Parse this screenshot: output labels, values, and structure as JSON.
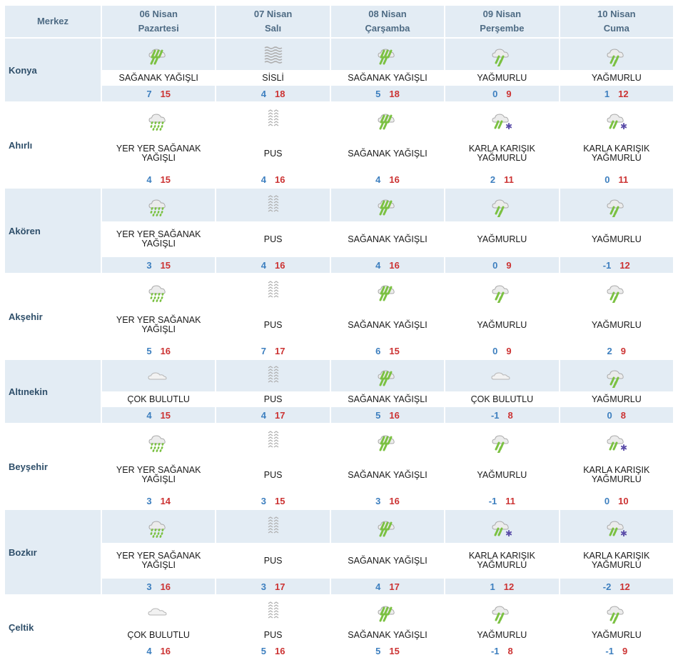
{
  "header": {
    "center_label": "Merkez",
    "days": [
      {
        "date": "06 Nisan",
        "weekday": "Pazartesi"
      },
      {
        "date": "07 Nisan",
        "weekday": "Salı"
      },
      {
        "date": "08 Nisan",
        "weekday": "Çarşamba"
      },
      {
        "date": "09 Nisan",
        "weekday": "Perşembe"
      },
      {
        "date": "10 Nisan",
        "weekday": "Cuma"
      }
    ]
  },
  "colors": {
    "header_bg": "#e3ecf4",
    "min_temp": "#3d7fbf",
    "max_temp": "#cc3333",
    "rain_drop": "#7bc142"
  },
  "rows": [
    {
      "city": "Konya",
      "days": [
        {
          "icon": "heavy-rain-icon",
          "desc": "SAĞANAK YAĞIŞLI",
          "min": "7",
          "max": "15"
        },
        {
          "icon": "fog-icon",
          "desc": "SİSLİ",
          "min": "4",
          "max": "18"
        },
        {
          "icon": "heavy-rain-icon",
          "desc": "SAĞANAK YAĞIŞLI",
          "min": "5",
          "max": "18"
        },
        {
          "icon": "rain-icon",
          "desc": "YAĞMURLU",
          "min": "0",
          "max": "9"
        },
        {
          "icon": "rain-icon",
          "desc": "YAĞMURLU",
          "min": "1",
          "max": "12"
        }
      ]
    },
    {
      "city": "Ahırlı",
      "days": [
        {
          "icon": "scattered-showers-icon",
          "desc": "YER YER SAĞANAK YAĞIŞLI",
          "min": "4",
          "max": "15"
        },
        {
          "icon": "haze-icon",
          "desc": "PUS",
          "min": "4",
          "max": "16"
        },
        {
          "icon": "heavy-rain-icon",
          "desc": "SAĞANAK YAĞIŞLI",
          "min": "4",
          "max": "16"
        },
        {
          "icon": "sleet-icon",
          "desc": "KARLA KARIŞIK YAĞMURLU",
          "min": "2",
          "max": "11"
        },
        {
          "icon": "sleet-icon",
          "desc": "KARLA KARIŞIK YAĞMURLU",
          "min": "0",
          "max": "11"
        }
      ]
    },
    {
      "city": "Akören",
      "days": [
        {
          "icon": "scattered-showers-icon",
          "desc": "YER YER SAĞANAK YAĞIŞLI",
          "min": "3",
          "max": "15"
        },
        {
          "icon": "haze-icon",
          "desc": "PUS",
          "min": "4",
          "max": "16"
        },
        {
          "icon": "heavy-rain-icon",
          "desc": "SAĞANAK YAĞIŞLI",
          "min": "4",
          "max": "16"
        },
        {
          "icon": "rain-icon",
          "desc": "YAĞMURLU",
          "min": "0",
          "max": "9"
        },
        {
          "icon": "rain-icon",
          "desc": "YAĞMURLU",
          "min": "-1",
          "max": "12"
        }
      ]
    },
    {
      "city": "Akşehir",
      "days": [
        {
          "icon": "scattered-showers-icon",
          "desc": "YER YER SAĞANAK YAĞIŞLI",
          "min": "5",
          "max": "16"
        },
        {
          "icon": "haze-icon",
          "desc": "PUS",
          "min": "7",
          "max": "17"
        },
        {
          "icon": "heavy-rain-icon",
          "desc": "SAĞANAK YAĞIŞLI",
          "min": "6",
          "max": "15"
        },
        {
          "icon": "rain-icon",
          "desc": "YAĞMURLU",
          "min": "0",
          "max": "9"
        },
        {
          "icon": "rain-icon",
          "desc": "YAĞMURLU",
          "min": "2",
          "max": "9"
        }
      ]
    },
    {
      "city": "Altınekin",
      "days": [
        {
          "icon": "cloudy-icon",
          "desc": "ÇOK BULUTLU",
          "min": "4",
          "max": "15"
        },
        {
          "icon": "haze-icon",
          "desc": "PUS",
          "min": "4",
          "max": "17"
        },
        {
          "icon": "heavy-rain-icon",
          "desc": "SAĞANAK YAĞIŞLI",
          "min": "5",
          "max": "16"
        },
        {
          "icon": "cloudy-icon",
          "desc": "ÇOK BULUTLU",
          "min": "-1",
          "max": "8"
        },
        {
          "icon": "rain-icon",
          "desc": "YAĞMURLU",
          "min": "0",
          "max": "8"
        }
      ]
    },
    {
      "city": "Beyşehir",
      "days": [
        {
          "icon": "scattered-showers-icon",
          "desc": "YER YER SAĞANAK YAĞIŞLI",
          "min": "3",
          "max": "14"
        },
        {
          "icon": "haze-icon",
          "desc": "PUS",
          "min": "3",
          "max": "15"
        },
        {
          "icon": "heavy-rain-icon",
          "desc": "SAĞANAK YAĞIŞLI",
          "min": "3",
          "max": "16"
        },
        {
          "icon": "rain-icon",
          "desc": "YAĞMURLU",
          "min": "-1",
          "max": "11"
        },
        {
          "icon": "sleet-icon",
          "desc": "KARLA KARIŞIK YAĞMURLU",
          "min": "0",
          "max": "10"
        }
      ]
    },
    {
      "city": "Bozkır",
      "days": [
        {
          "icon": "scattered-showers-icon",
          "desc": "YER YER SAĞANAK YAĞIŞLI",
          "min": "3",
          "max": "16"
        },
        {
          "icon": "haze-icon",
          "desc": "PUS",
          "min": "3",
          "max": "17"
        },
        {
          "icon": "heavy-rain-icon",
          "desc": "SAĞANAK YAĞIŞLI",
          "min": "4",
          "max": "17"
        },
        {
          "icon": "sleet-icon",
          "desc": "KARLA KARIŞIK YAĞMURLU",
          "min": "1",
          "max": "12"
        },
        {
          "icon": "sleet-icon",
          "desc": "KARLA KARIŞIK YAĞMURLU",
          "min": "-2",
          "max": "12"
        }
      ]
    },
    {
      "city": "Çeltik",
      "days": [
        {
          "icon": "cloudy-icon",
          "desc": "ÇOK BULUTLU",
          "min": "4",
          "max": "16"
        },
        {
          "icon": "haze-icon",
          "desc": "PUS",
          "min": "5",
          "max": "16"
        },
        {
          "icon": "heavy-rain-icon",
          "desc": "SAĞANAK YAĞIŞLI",
          "min": "5",
          "max": "15"
        },
        {
          "icon": "rain-icon",
          "desc": "YAĞMURLU",
          "min": "-1",
          "max": "8"
        },
        {
          "icon": "rain-icon",
          "desc": "YAĞMURLU",
          "min": "-1",
          "max": "9"
        }
      ]
    }
  ]
}
